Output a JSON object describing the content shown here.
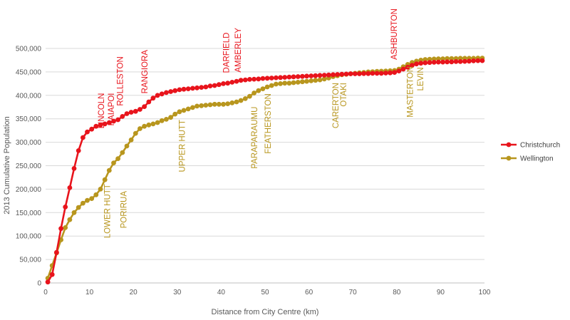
{
  "chart_data": {
    "type": "line",
    "title": "",
    "xlabel": "Distance from City Centre (km)",
    "ylabel": "2013 Cumulative Population",
    "xlim": [
      0,
      100
    ],
    "ylim": [
      0,
      500000
    ],
    "x_ticks": [
      "0",
      "10",
      "20",
      "30",
      "40",
      "50",
      "60",
      "70",
      "80",
      "90",
      "100"
    ],
    "y_ticks": [
      "0",
      "50,000",
      "100,000",
      "150,000",
      "200,000",
      "250,000",
      "300,000",
      "350,000",
      "400,000",
      "450,000",
      "500,000"
    ],
    "grid": "horizontal",
    "legend_position": "right",
    "series": [
      {
        "name": "Christchurch",
        "color": "#e8141c",
        "points": [
          [
            0.5,
            2000
          ],
          [
            1.5,
            18000
          ],
          [
            2.5,
            65000
          ],
          [
            3.5,
            116000
          ],
          [
            4.5,
            162000
          ],
          [
            5.5,
            203000
          ],
          [
            6.5,
            244000
          ],
          [
            7.5,
            282000
          ],
          [
            8.5,
            310000
          ],
          [
            9.5,
            322000
          ],
          [
            10.5,
            328000
          ],
          [
            11.5,
            334000
          ],
          [
            12.5,
            337000
          ],
          [
            13.5,
            339000
          ],
          [
            14.5,
            342000
          ],
          [
            15.5,
            345000
          ],
          [
            16.5,
            348000
          ],
          [
            17.5,
            355000
          ],
          [
            18.5,
            361000
          ],
          [
            19.5,
            364000
          ],
          [
            20.5,
            366000
          ],
          [
            21.5,
            370000
          ],
          [
            22.5,
            376000
          ],
          [
            23.5,
            386000
          ],
          [
            24.5,
            394000
          ],
          [
            25.5,
            400000
          ],
          [
            26.5,
            403000
          ],
          [
            27.5,
            406000
          ],
          [
            28.5,
            408000
          ],
          [
            29.5,
            410000
          ],
          [
            30.5,
            412000
          ],
          [
            31.5,
            413000
          ],
          [
            32.5,
            414000
          ],
          [
            33.5,
            415000
          ],
          [
            34.5,
            416000
          ],
          [
            35.5,
            417000
          ],
          [
            36.5,
            418000
          ],
          [
            37.5,
            420000
          ],
          [
            38.5,
            421000
          ],
          [
            39.5,
            423000
          ],
          [
            40.5,
            425000
          ],
          [
            41.5,
            426000
          ],
          [
            42.5,
            428000
          ],
          [
            43.5,
            430000
          ],
          [
            44.5,
            432000
          ],
          [
            45.5,
            433000
          ],
          [
            46.5,
            434000
          ],
          [
            47.5,
            434500
          ],
          [
            48.5,
            435000
          ],
          [
            49.5,
            436000
          ],
          [
            50.5,
            436500
          ],
          [
            51.5,
            437000
          ],
          [
            52.5,
            437500
          ],
          [
            53.5,
            438000
          ],
          [
            54.5,
            438500
          ],
          [
            55.5,
            439000
          ],
          [
            56.5,
            439500
          ],
          [
            57.5,
            440000
          ],
          [
            58.5,
            440500
          ],
          [
            59.5,
            441000
          ],
          [
            60.5,
            441500
          ],
          [
            61.5,
            442000
          ],
          [
            62.5,
            442500
          ],
          [
            63.5,
            443000
          ],
          [
            64.5,
            443500
          ],
          [
            65.5,
            444000
          ],
          [
            66.5,
            444500
          ],
          [
            67.5,
            445000
          ],
          [
            68.5,
            445500
          ],
          [
            69.5,
            446000
          ],
          [
            70.5,
            446000
          ],
          [
            71.5,
            446000
          ],
          [
            72.5,
            446500
          ],
          [
            73.5,
            446500
          ],
          [
            74.5,
            447000
          ],
          [
            75.5,
            447000
          ],
          [
            76.5,
            447000
          ],
          [
            77.5,
            447500
          ],
          [
            78.5,
            448000
          ],
          [
            79.5,
            449000
          ],
          [
            80.5,
            452000
          ],
          [
            81.5,
            456000
          ],
          [
            82.5,
            460000
          ],
          [
            83.5,
            464000
          ],
          [
            84.5,
            467000
          ],
          [
            85.5,
            468500
          ],
          [
            86.5,
            469500
          ],
          [
            87.5,
            470000
          ],
          [
            88.5,
            470500
          ],
          [
            89.5,
            471000
          ],
          [
            90.5,
            471000
          ],
          [
            91.5,
            471500
          ],
          [
            92.5,
            471500
          ],
          [
            93.5,
            472000
          ],
          [
            94.5,
            472000
          ],
          [
            95.5,
            472500
          ],
          [
            96.5,
            473000
          ],
          [
            97.5,
            473500
          ],
          [
            98.5,
            474000
          ],
          [
            99.5,
            474000
          ]
        ]
      },
      {
        "name": "Wellington",
        "color": "#b8961e",
        "points": [
          [
            0.5,
            10000
          ],
          [
            1.5,
            37000
          ],
          [
            2.5,
            64000
          ],
          [
            3.5,
            92000
          ],
          [
            4.5,
            118000
          ],
          [
            5.5,
            135000
          ],
          [
            6.5,
            150000
          ],
          [
            7.5,
            161000
          ],
          [
            8.5,
            170000
          ],
          [
            9.5,
            176000
          ],
          [
            10.5,
            180000
          ],
          [
            11.5,
            188000
          ],
          [
            12.5,
            200000
          ],
          [
            13.5,
            220000
          ],
          [
            14.5,
            240000
          ],
          [
            15.5,
            256000
          ],
          [
            16.5,
            265000
          ],
          [
            17.5,
            278000
          ],
          [
            18.5,
            292000
          ],
          [
            19.5,
            305000
          ],
          [
            20.5,
            319000
          ],
          [
            21.5,
            329000
          ],
          [
            22.5,
            334000
          ],
          [
            23.5,
            337000
          ],
          [
            24.5,
            339000
          ],
          [
            25.5,
            342000
          ],
          [
            26.5,
            346000
          ],
          [
            27.5,
            349000
          ],
          [
            28.5,
            353000
          ],
          [
            29.5,
            360000
          ],
          [
            30.5,
            365000
          ],
          [
            31.5,
            368000
          ],
          [
            32.5,
            371000
          ],
          [
            33.5,
            374000
          ],
          [
            34.5,
            377000
          ],
          [
            35.5,
            378000
          ],
          [
            36.5,
            379000
          ],
          [
            37.5,
            380000
          ],
          [
            38.5,
            381000
          ],
          [
            39.5,
            381000
          ],
          [
            40.5,
            381000
          ],
          [
            41.5,
            382000
          ],
          [
            42.5,
            384000
          ],
          [
            43.5,
            386000
          ],
          [
            44.5,
            389000
          ],
          [
            45.5,
            393000
          ],
          [
            46.5,
            398000
          ],
          [
            47.5,
            405000
          ],
          [
            48.5,
            410000
          ],
          [
            49.5,
            414000
          ],
          [
            50.5,
            418000
          ],
          [
            51.5,
            421000
          ],
          [
            52.5,
            424000
          ],
          [
            53.5,
            425000
          ],
          [
            54.5,
            426000
          ],
          [
            55.5,
            426000
          ],
          [
            56.5,
            427000
          ],
          [
            57.5,
            428000
          ],
          [
            58.5,
            429000
          ],
          [
            59.5,
            430000
          ],
          [
            60.5,
            431000
          ],
          [
            61.5,
            432000
          ],
          [
            62.5,
            433000
          ],
          [
            63.5,
            435000
          ],
          [
            64.5,
            437000
          ],
          [
            65.5,
            440000
          ],
          [
            66.5,
            442000
          ],
          [
            67.5,
            444000
          ],
          [
            68.5,
            445000
          ],
          [
            69.5,
            446000
          ],
          [
            70.5,
            447000
          ],
          [
            71.5,
            448000
          ],
          [
            72.5,
            449000
          ],
          [
            73.5,
            450000
          ],
          [
            74.5,
            450500
          ],
          [
            75.5,
            451000
          ],
          [
            76.5,
            451500
          ],
          [
            77.5,
            452000
          ],
          [
            78.5,
            452500
          ],
          [
            79.5,
            453000
          ],
          [
            80.5,
            456000
          ],
          [
            81.5,
            461000
          ],
          [
            82.5,
            466000
          ],
          [
            83.5,
            470000
          ],
          [
            84.5,
            473000
          ],
          [
            85.5,
            475000
          ],
          [
            86.5,
            476500
          ],
          [
            87.5,
            477000
          ],
          [
            88.5,
            477500
          ],
          [
            89.5,
            478000
          ],
          [
            90.5,
            478000
          ],
          [
            91.5,
            478500
          ],
          [
            92.5,
            478500
          ],
          [
            93.5,
            478500
          ],
          [
            94.5,
            479000
          ],
          [
            95.5,
            479000
          ],
          [
            96.5,
            479000
          ],
          [
            97.5,
            479000
          ],
          [
            98.5,
            479500
          ],
          [
            99.5,
            479500
          ]
        ]
      }
    ],
    "annotations": [
      {
        "text": "LINCOLN",
        "series": "Christchurch",
        "x": 13.3,
        "y_top": 405000
      },
      {
        "text": "KAIAPOI",
        "series": "Christchurch",
        "x": 15.6,
        "y_top": 405000
      },
      {
        "text": "ROLLESTON",
        "series": "Christchurch",
        "x": 17.6,
        "y_top": 483000
      },
      {
        "text": "RANGIORA",
        "series": "Christchurch",
        "x": 23.2,
        "y_top": 497000
      },
      {
        "text": "DARFIELD",
        "series": "Christchurch",
        "x": 41.8,
        "y_top": 534000
      },
      {
        "text": "AMBERLEY",
        "series": "Christchurch",
        "x": 44.5,
        "y_top": 544000
      },
      {
        "text": "ASHBURTON",
        "series": "Christchurch",
        "x": 80.0,
        "y_top": 585000
      },
      {
        "text": "LOWER HUTT",
        "series": "Wellington",
        "x": 14.7,
        "y_top": 211000
      },
      {
        "text": "PORIRUA",
        "series": "Wellington",
        "x": 18.4,
        "y_top": 196000
      },
      {
        "text": "UPPER HUTT",
        "series": "Wellington",
        "x": 31.7,
        "y_top": 348000
      },
      {
        "text": "PARAPARAUMU",
        "series": "Wellington",
        "x": 48.2,
        "y_top": 376000
      },
      {
        "text": "FEATHERSTON",
        "series": "Wellington",
        "x": 51.3,
        "y_top": 404000
      },
      {
        "text": "CARERTON",
        "series": "Wellington",
        "x": 66.7,
        "y_top": 427000
      },
      {
        "text": "OTAKI",
        "series": "Wellington",
        "x": 68.5,
        "y_top": 427000
      },
      {
        "text": "MASTERTON",
        "series": "Wellington",
        "x": 83.7,
        "y_top": 462000
      },
      {
        "text": "LEVIN",
        "series": "Wellington",
        "x": 86.0,
        "y_top": 460000
      }
    ]
  }
}
